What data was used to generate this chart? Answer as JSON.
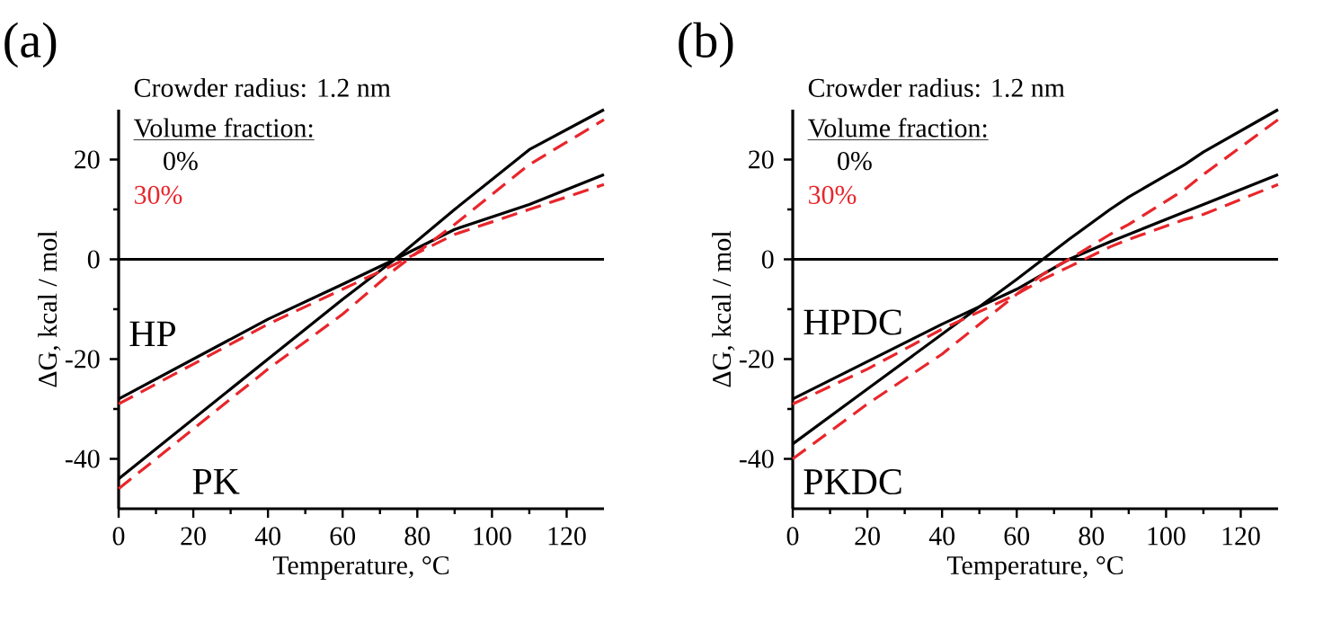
{
  "chart_data": [
    {
      "type": "line",
      "title": "(a)",
      "xlabel": "Temperature, °C",
      "ylabel": "ΔG, kcal / mol",
      "legend_title": "Volume fraction:",
      "legend": "top left",
      "annotations": [
        "Crowder radius: 1.2 nm",
        "HP",
        "PK"
      ],
      "xlim": [
        0,
        130
      ],
      "ylim": [
        -50,
        30
      ],
      "xticks": [
        0,
        20,
        40,
        60,
        80,
        100,
        120
      ],
      "yticks": [
        -40,
        -20,
        0,
        20
      ],
      "ref_lines": [
        {
          "axis": "y",
          "value": 0,
          "color": "#000000"
        }
      ],
      "x": [
        0,
        20,
        40,
        60,
        74,
        90,
        110,
        130
      ],
      "series": [
        {
          "name": "0%",
          "color": "#000000",
          "line_style": "solid",
          "values": [
            -28,
            -20,
            -12,
            -5,
            0,
            6,
            11,
            17
          ]
        },
        {
          "color": "#000000",
          "line_style": "solid",
          "values": [
            -44,
            -32,
            -20,
            -8,
            0,
            10,
            22,
            30
          ]
        },
        {
          "name": "30%",
          "color": "#e8262b",
          "line_style": "dashed",
          "values": [
            -29,
            -21,
            -13,
            -6,
            -1,
            5,
            10,
            15
          ]
        },
        {
          "color": "#e8262b",
          "line_style": "dashed",
          "values": [
            -46,
            -34,
            -22,
            -11,
            -2,
            7,
            19,
            28
          ]
        }
      ]
    },
    {
      "type": "line",
      "title": "(b)",
      "xlabel": "Temperature, °C",
      "ylabel": "ΔG, kcal / mol",
      "legend_title": "Volume fraction:",
      "legend": "top left",
      "annotations": [
        "Crowder radius: 1.2 nm",
        "HPDC",
        "PKDC"
      ],
      "xlim": [
        0,
        130
      ],
      "ylim": [
        -50,
        30
      ],
      "xticks": [
        0,
        20,
        40,
        60,
        80,
        100,
        120
      ],
      "yticks": [
        -40,
        -20,
        0,
        20
      ],
      "ref_lines": [
        {
          "axis": "y",
          "value": 0,
          "color": "#000000"
        }
      ],
      "x": [
        0,
        20,
        40,
        60,
        67,
        74,
        85,
        90,
        105,
        110,
        130
      ],
      "series": [
        {
          "name": "0%",
          "color": "#000000",
          "line_style": "solid",
          "values": [
            -28,
            -20.5,
            -13,
            -6,
            -3,
            0,
            3.5,
            5,
            9.5,
            11,
            17
          ]
        },
        {
          "color": "#000000",
          "line_style": "solid",
          "values": [
            -37,
            -26,
            -15,
            -4,
            0,
            4,
            10,
            12.5,
            19,
            21.5,
            30
          ]
        },
        {
          "name": "30%",
          "color": "#e8262b",
          "line_style": "dashed",
          "values": [
            -29,
            -22,
            -14,
            -7,
            -4,
            -1.5,
            2.5,
            4,
            8,
            9,
            15
          ]
        },
        {
          "color": "#e8262b",
          "line_style": "dashed",
          "values": [
            -40,
            -29,
            -19,
            -7,
            -3,
            0,
            5,
            7,
            14,
            17,
            28
          ]
        }
      ]
    }
  ]
}
